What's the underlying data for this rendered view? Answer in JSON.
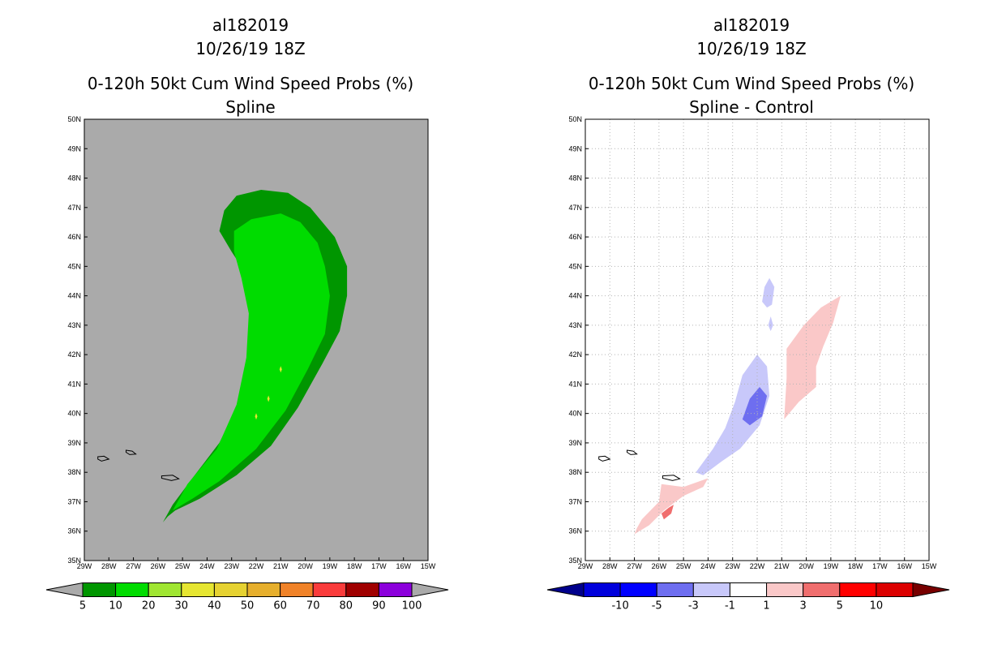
{
  "chart_data": [
    {
      "type": "heatmap",
      "id": "left",
      "title_lines": [
        "al182019",
        "10/26/19 18Z",
        "0-120h 50kt Cum Wind Speed Probs (%)",
        "Spline"
      ],
      "xlabel": "",
      "ylabel": "",
      "x_range": [
        -29,
        -15
      ],
      "y_range": [
        35,
        50
      ],
      "x_ticks": [
        "29W",
        "28W",
        "27W",
        "26W",
        "25W",
        "24W",
        "23W",
        "22W",
        "21W",
        "20W",
        "19W",
        "18W",
        "17W",
        "16W",
        "15W"
      ],
      "y_ticks": [
        "35N",
        "36N",
        "37N",
        "38N",
        "39N",
        "40N",
        "41N",
        "42N",
        "43N",
        "44N",
        "45N",
        "46N",
        "47N",
        "48N",
        "49N",
        "50N"
      ],
      "background": "#aaaaaa",
      "gridlines": false,
      "colorbar": {
        "labels": [
          "5",
          "10",
          "20",
          "30",
          "40",
          "50",
          "60",
          "70",
          "80",
          "90",
          "100"
        ],
        "colors": [
          "#009600",
          "#00dc00",
          "#a0e632",
          "#e6e632",
          "#e6d232",
          "#e6af2d",
          "#f08228",
          "#fa3c3c",
          "#a00000",
          "#8c00dc"
        ],
        "extend_colors": [
          "#aaaaaa",
          "#aaaaaa"
        ]
      },
      "regions": [
        {
          "name": "5-10 %",
          "color": "#009600",
          "points": [
            [
              -25.8,
              36.3
            ],
            [
              -25.4,
              36.9
            ],
            [
              -24.6,
              37.8
            ],
            [
              -23.5,
              39.0
            ],
            [
              -22.6,
              40.5
            ],
            [
              -22.1,
              42.0
            ],
            [
              -22.0,
              43.6
            ],
            [
              -22.3,
              44.6
            ],
            [
              -23.0,
              45.5
            ],
            [
              -23.5,
              46.2
            ],
            [
              -23.3,
              46.9
            ],
            [
              -22.8,
              47.4
            ],
            [
              -21.8,
              47.6
            ],
            [
              -20.7,
              47.5
            ],
            [
              -19.8,
              47.0
            ],
            [
              -18.8,
              46.0
            ],
            [
              -18.3,
              45.0
            ],
            [
              -18.3,
              44.0
            ],
            [
              -18.6,
              42.8
            ],
            [
              -19.3,
              41.7
            ],
            [
              -20.3,
              40.2
            ],
            [
              -21.4,
              38.9
            ],
            [
              -22.8,
              37.9
            ],
            [
              -24.3,
              37.1
            ],
            [
              -25.3,
              36.7
            ],
            [
              -25.6,
              36.5
            ]
          ]
        },
        {
          "name": "10-20 %",
          "color": "#00dc00",
          "points": [
            [
              -25.4,
              36.7
            ],
            [
              -24.8,
              37.6
            ],
            [
              -23.6,
              38.8
            ],
            [
              -22.8,
              40.3
            ],
            [
              -22.4,
              41.9
            ],
            [
              -22.3,
              43.4
            ],
            [
              -22.6,
              44.6
            ],
            [
              -22.9,
              45.5
            ],
            [
              -22.9,
              46.2
            ],
            [
              -22.2,
              46.6
            ],
            [
              -21.0,
              46.8
            ],
            [
              -20.2,
              46.5
            ],
            [
              -19.5,
              45.8
            ],
            [
              -19.2,
              45.0
            ],
            [
              -19.0,
              44.0
            ],
            [
              -19.2,
              42.7
            ],
            [
              -19.9,
              41.5
            ],
            [
              -20.8,
              40.1
            ],
            [
              -22.0,
              38.8
            ],
            [
              -23.5,
              37.7
            ],
            [
              -24.6,
              37.1
            ]
          ]
        }
      ],
      "coastlines": [
        {
          "name": "island-a",
          "points": [
            [
              -28.45,
              38.53
            ],
            [
              -28.2,
              38.55
            ],
            [
              -28.0,
              38.45
            ],
            [
              -28.3,
              38.38
            ],
            [
              -28.45,
              38.45
            ]
          ]
        },
        {
          "name": "island-b",
          "points": [
            [
              -27.3,
              38.75
            ],
            [
              -27.05,
              38.72
            ],
            [
              -26.9,
              38.62
            ],
            [
              -27.15,
              38.6
            ],
            [
              -27.3,
              38.68
            ]
          ]
        },
        {
          "name": "island-c",
          "points": [
            [
              -25.85,
              37.88
            ],
            [
              -25.4,
              37.9
            ],
            [
              -25.15,
              37.78
            ],
            [
              -25.45,
              37.72
            ],
            [
              -25.85,
              37.8
            ]
          ]
        }
      ],
      "markers": [
        {
          "name": "yellow-spot",
          "color": "#e6e632",
          "x": -21.0,
          "y": 41.5
        },
        {
          "name": "yellow-spot",
          "color": "#e6e632",
          "x": -21.5,
          "y": 40.5
        },
        {
          "name": "yellow-spot",
          "color": "#e6e632",
          "x": -22.0,
          "y": 39.9
        }
      ]
    },
    {
      "type": "heatmap",
      "id": "right",
      "title_lines": [
        "al182019",
        "10/26/19 18Z",
        "0-120h 50kt Cum Wind Speed Probs (%)",
        "Spline - Control"
      ],
      "xlabel": "",
      "ylabel": "",
      "x_range": [
        -29,
        -15
      ],
      "y_range": [
        35,
        50
      ],
      "x_ticks": [
        "29W",
        "28W",
        "27W",
        "26W",
        "25W",
        "24W",
        "23W",
        "22W",
        "21W",
        "20W",
        "19W",
        "18W",
        "17W",
        "16W",
        "15W"
      ],
      "y_ticks": [
        "35N",
        "36N",
        "37N",
        "38N",
        "39N",
        "40N",
        "41N",
        "42N",
        "43N",
        "44N",
        "45N",
        "46N",
        "47N",
        "48N",
        "49N",
        "50N"
      ],
      "background": "#ffffff",
      "gridlines": true,
      "colorbar": {
        "labels": [
          "-10",
          "-5",
          "-3",
          "-1",
          "1",
          "3",
          "5",
          "10"
        ],
        "colors": [
          "#0000dc",
          "#0000ff",
          "#6e6ef0",
          "#c8c8fa",
          "#ffffff",
          "#fac8c8",
          "#f06e6e",
          "#ff0000",
          "#dc0000"
        ],
        "extend_colors": [
          "#00008c",
          "#780000"
        ]
      },
      "regions": [
        {
          "name": "blue-region -3 to -1",
          "color": "#c8c8fa",
          "points": [
            [
              -24.5,
              38.0
            ],
            [
              -23.8,
              38.8
            ],
            [
              -23.3,
              39.5
            ],
            [
              -22.9,
              40.4
            ],
            [
              -22.6,
              41.3
            ],
            [
              -22.0,
              42.0
            ],
            [
              -21.6,
              41.6
            ],
            [
              -21.5,
              40.6
            ],
            [
              -21.9,
              39.6
            ],
            [
              -22.7,
              38.8
            ],
            [
              -23.4,
              38.4
            ],
            [
              -24.2,
              37.9
            ]
          ]
        },
        {
          "name": "blue-region -5 to -3",
          "color": "#6e6ef0",
          "points": [
            [
              -22.6,
              39.8
            ],
            [
              -22.3,
              40.5
            ],
            [
              -21.9,
              40.9
            ],
            [
              -21.6,
              40.6
            ],
            [
              -21.8,
              39.9
            ],
            [
              -22.3,
              39.6
            ]
          ]
        },
        {
          "name": "blue-region -3 to -1",
          "color": "#c8c8fa",
          "points": [
            [
              -21.8,
              43.8
            ],
            [
              -21.7,
              44.3
            ],
            [
              -21.5,
              44.6
            ],
            [
              -21.3,
              44.3
            ],
            [
              -21.4,
              43.7
            ],
            [
              -21.6,
              43.6
            ]
          ]
        },
        {
          "name": "blue-region -3 to -1",
          "color": "#c8c8fa",
          "points": [
            [
              -21.55,
              43.0
            ],
            [
              -21.45,
              43.3
            ],
            [
              -21.35,
              43.0
            ],
            [
              -21.45,
              42.8
            ]
          ]
        },
        {
          "name": "red-region 1 to 3",
          "color": "#fac8c8",
          "points": [
            [
              -20.9,
              39.8
            ],
            [
              -20.3,
              40.4
            ],
            [
              -19.6,
              40.9
            ],
            [
              -19.6,
              41.6
            ],
            [
              -19.3,
              42.3
            ],
            [
              -18.9,
              43.1
            ],
            [
              -18.6,
              44.0
            ],
            [
              -19.4,
              43.6
            ],
            [
              -20.1,
              43.0
            ],
            [
              -20.8,
              42.2
            ],
            [
              -20.8,
              41.2
            ]
          ]
        },
        {
          "name": "red-region 1 to 3",
          "color": "#fac8c8",
          "points": [
            [
              -27.0,
              35.9
            ],
            [
              -26.4,
              36.2
            ],
            [
              -25.8,
              36.7
            ],
            [
              -25.0,
              37.2
            ],
            [
              -24.2,
              37.5
            ],
            [
              -24.0,
              37.8
            ],
            [
              -25.0,
              37.5
            ],
            [
              -25.9,
              37.6
            ],
            [
              -26.0,
              37.0
            ],
            [
              -26.7,
              36.4
            ],
            [
              -26.9,
              36.1
            ]
          ]
        },
        {
          "name": "red-region 3 to 5",
          "color": "#f06e6e",
          "points": [
            [
              -25.8,
              36.4
            ],
            [
              -25.5,
              36.6
            ],
            [
              -25.4,
              36.9
            ],
            [
              -25.6,
              36.8
            ],
            [
              -25.9,
              36.6
            ]
          ]
        }
      ],
      "coastlines": [
        {
          "name": "island-a",
          "points": [
            [
              -28.45,
              38.53
            ],
            [
              -28.2,
              38.55
            ],
            [
              -28.0,
              38.45
            ],
            [
              -28.3,
              38.38
            ],
            [
              -28.45,
              38.45
            ]
          ]
        },
        {
          "name": "island-b",
          "points": [
            [
              -27.3,
              38.75
            ],
            [
              -27.05,
              38.72
            ],
            [
              -26.9,
              38.62
            ],
            [
              -27.15,
              38.6
            ],
            [
              -27.3,
              38.68
            ]
          ]
        },
        {
          "name": "island-c",
          "points": [
            [
              -25.85,
              37.88
            ],
            [
              -25.4,
              37.9
            ],
            [
              -25.15,
              37.78
            ],
            [
              -25.45,
              37.72
            ],
            [
              -25.85,
              37.8
            ]
          ]
        }
      ],
      "markers": []
    }
  ]
}
